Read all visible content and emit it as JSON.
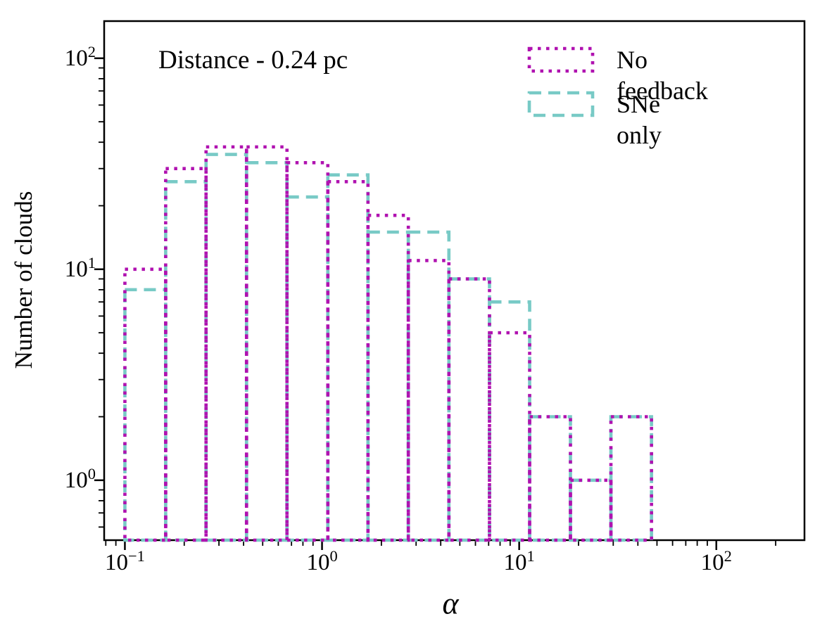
{
  "figure": {
    "annotation": "Distance - 0.24 pc",
    "xlabel": "α",
    "ylabel": "Number of clouds"
  },
  "chart_data": {
    "type": "bar",
    "subtype": "histogram-unfilled-outlines",
    "title": "Distance - 0.24 pc",
    "xlabel": "α",
    "ylabel": "Number of clouds",
    "x_scale": "log",
    "y_scale": "log",
    "xlim": [
      0.0785,
      280
    ],
    "ylim": [
      0.52,
      150
    ],
    "grid": false,
    "legend_position": "upper right",
    "x_major_tick_exponents": [
      -1,
      0,
      1,
      2
    ],
    "y_major_tick_exponents": [
      0,
      1,
      2
    ],
    "bin_edges": [
      0.1,
      0.161,
      0.258,
      0.414,
      0.664,
      1.07,
      1.71,
      2.74,
      4.4,
      7.07,
      11.3,
      18.2,
      29.2,
      46.9
    ],
    "series": [
      {
        "name": "No feedback",
        "color": "#b012b0",
        "linestyle": "dotted",
        "counts": [
          10,
          30,
          38,
          38,
          32,
          26,
          18,
          11,
          9,
          5,
          2,
          1,
          2
        ]
      },
      {
        "name": "SNe only",
        "color": "#78cac6",
        "linestyle": "dashed",
        "counts": [
          8,
          26,
          35,
          32,
          22,
          28,
          15,
          15,
          9,
          7,
          2,
          1,
          2
        ]
      }
    ],
    "axis_color": "#000000",
    "background_color": "#ffffff"
  }
}
